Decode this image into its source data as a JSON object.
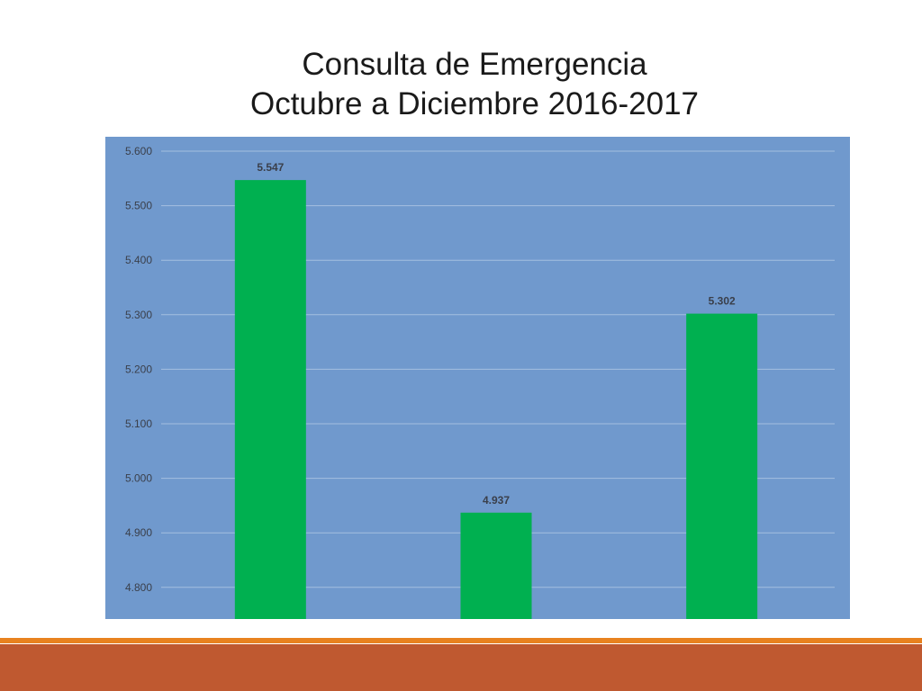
{
  "slide": {
    "title_line1": "Consulta de Emergencia",
    "title_line2": "Octubre a Diciembre 2016-2017"
  },
  "colors": {
    "plot_background": "#7099cd",
    "bar": "#00b050",
    "gridline": "#a4bfe0",
    "footer_accent": "#e8821f",
    "footer_bar": "#bf5930"
  },
  "chart_data": {
    "type": "bar",
    "title": "Consulta de Emergencia Octubre a Diciembre 2016-2017",
    "categories": [
      "",
      "",
      ""
    ],
    "values": [
      5.547,
      4.937,
      5.302
    ],
    "value_labels": [
      "5.547",
      "4.937",
      "5.302"
    ],
    "ylim": [
      4.75,
      5.6
    ],
    "yticks": [
      4.8,
      4.9,
      5.0,
      5.1,
      5.2,
      5.3,
      5.4,
      5.5,
      5.6
    ],
    "ytick_labels": [
      "4.800",
      "4.900",
      "5.000",
      "5.100",
      "5.200",
      "5.300",
      "5.400",
      "5.500",
      "5.600"
    ],
    "grid": true,
    "legend": "none"
  }
}
